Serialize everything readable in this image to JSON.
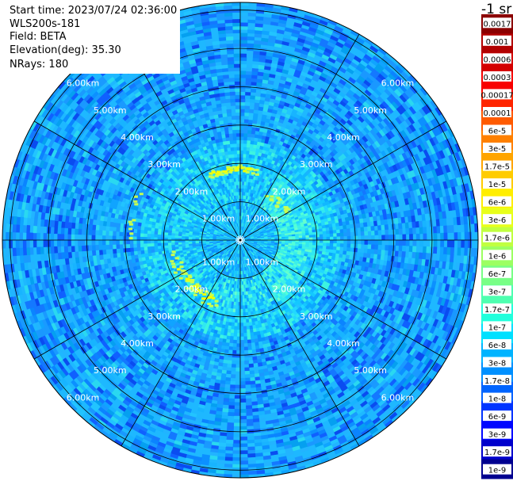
{
  "header": {
    "start_time": "Start time: 2023/07/24 02:36:00",
    "instrument": "WLS200s-181",
    "field": "Field: BETA",
    "elevation": "Elevation(deg): 35.30",
    "nrays": "NRays: 180"
  },
  "colorbar": {
    "title": "-1 sr",
    "colors": [
      "#8b0000",
      "#b20000",
      "#d40000",
      "#f80000",
      "#ff2500",
      "#ff5a00",
      "#ff8000",
      "#ffa500",
      "#ffcc00",
      "#ffee00",
      "#e8ff1a",
      "#c0ff40",
      "#9cff62",
      "#78ff86",
      "#4effb0",
      "#22ffdc",
      "#00e0ff",
      "#00b4ff",
      "#0090ff",
      "#0064ff",
      "#0034ff",
      "#0006ff",
      "#0000cc",
      "#000090"
    ],
    "labels": [
      "0.0017",
      "0.001",
      "0.0006",
      "0.0003",
      "0.00017",
      "0.0001",
      "6e-5",
      "3e-5",
      "1.7e-5",
      "1e-5",
      "6e-6",
      "3e-6",
      "1.7e-6",
      "1e-6",
      "6e-7",
      "3e-7",
      "1.7e-7",
      "1e-7",
      "6e-8",
      "3e-8",
      "1.7e-8",
      "1e-8",
      "6e-9",
      "3e-9",
      "1.7e-9",
      "1e-9"
    ]
  },
  "chart_data": {
    "type": "heatmap",
    "projection": "polar",
    "field": "BETA",
    "nrays": 180,
    "spokes_deg": [
      0,
      30,
      60,
      90,
      120,
      150,
      180,
      210,
      240,
      270,
      300,
      330
    ],
    "range_rings_km": [
      1,
      2,
      3,
      4,
      5,
      6
    ],
    "max_range_km": 6.2,
    "ring_labels": [
      "1.00km",
      "2.00km",
      "3.00km",
      "4.00km",
      "5.00km",
      "6.00km"
    ],
    "label_bearings_deg": [
      -45,
      45,
      135,
      225
    ],
    "background_colors": {
      "near": "#14c8ff",
      "mid": "#1eb8ff",
      "far": "#1a9aff",
      "patch": "#3ef0e8",
      "deep": "#1050ff",
      "aerosol_arc": "#c8ff50",
      "aerosol_core": "#f2ff00"
    }
  }
}
